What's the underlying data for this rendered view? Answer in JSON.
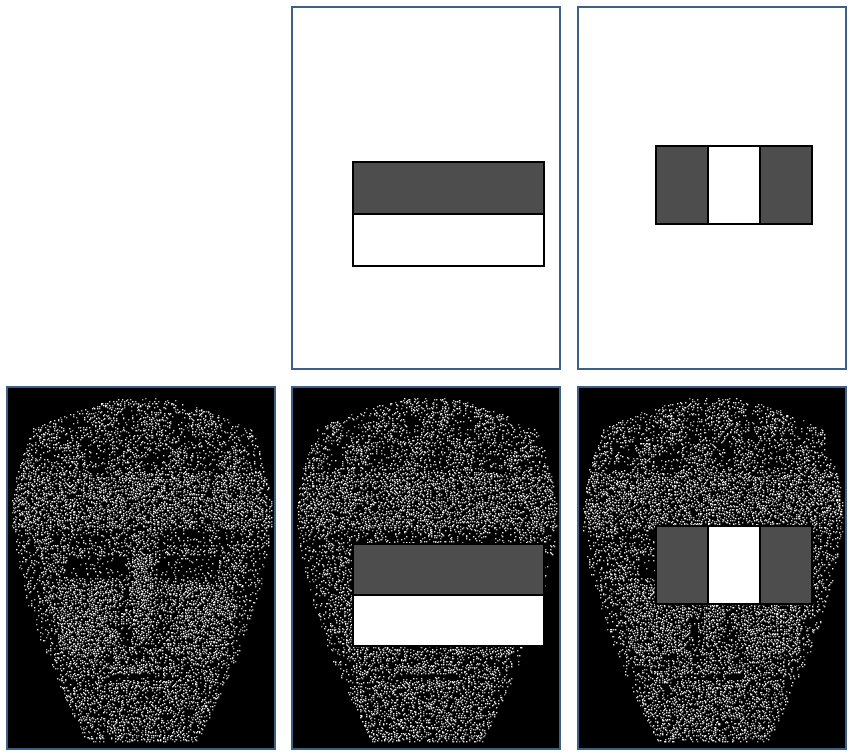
{
  "colors": {
    "panel_border": "#3e5f8a",
    "feature_dark": "#4d4d4d",
    "feature_light": "#ffffff",
    "face_background": "#000000",
    "face_texture": "#ffffff"
  },
  "panels": [
    {
      "id": "top-middle",
      "content": "blank",
      "feature": "two-rectangle-edge-feature"
    },
    {
      "id": "top-right",
      "content": "blank",
      "feature": "three-rectangle-line-feature"
    },
    {
      "id": "bottom-left",
      "content": "face-image",
      "feature": "none"
    },
    {
      "id": "bottom-middle",
      "content": "face-image",
      "feature": "two-rectangle-edge-feature"
    },
    {
      "id": "bottom-right",
      "content": "face-image",
      "feature": "three-rectangle-line-feature"
    }
  ],
  "features": {
    "edge": {
      "orientation": "horizontal",
      "cells": [
        "dark",
        "light"
      ]
    },
    "line": {
      "orientation": "vertical",
      "cells": [
        "dark",
        "light",
        "dark"
      ]
    }
  },
  "icons": [
    "face-image"
  ]
}
